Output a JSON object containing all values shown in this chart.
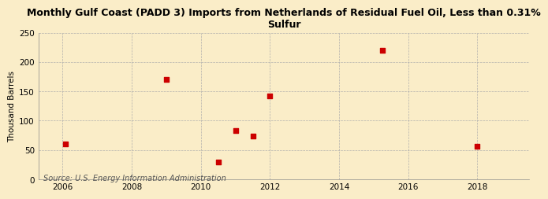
{
  "title": "Monthly Gulf Coast (PADD 3) Imports from Netherlands of Residual Fuel Oil, Less than 0.31%\nSulfur",
  "ylabel": "Thousand Barrels",
  "source": "Source: U.S. Energy Information Administration",
  "background_color": "#faedc8",
  "scatter_color": "#cc0000",
  "x_data": [
    2006.08,
    2009.0,
    2010.5,
    2011.0,
    2011.5,
    2012.0,
    2015.25,
    2018.0
  ],
  "y_data": [
    60,
    170,
    30,
    83,
    74,
    142,
    220,
    56
  ],
  "xlim": [
    2005.3,
    2019.5
  ],
  "ylim": [
    0,
    250
  ],
  "yticks": [
    0,
    50,
    100,
    150,
    200,
    250
  ],
  "xticks": [
    2006,
    2008,
    2010,
    2012,
    2014,
    2016,
    2018
  ],
  "marker_size": 18,
  "title_fontsize": 9,
  "axis_label_fontsize": 7.5,
  "tick_fontsize": 7.5,
  "source_fontsize": 7
}
